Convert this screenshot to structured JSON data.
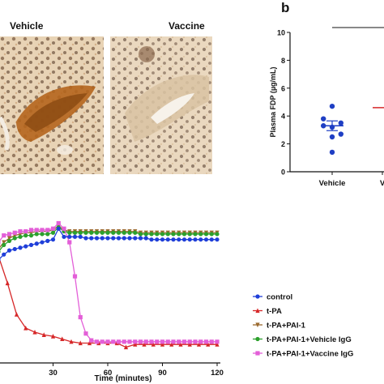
{
  "panels": {
    "histology": {
      "left_label": "Vehicle",
      "right_label": "Vaccine"
    },
    "b_label": "b"
  },
  "chart_data": [
    {
      "type": "scatter",
      "panel": "b",
      "title": "",
      "ylabel": "Plasma FDP (µg/mL)",
      "xlabel": "",
      "ylim": [
        0,
        10
      ],
      "yticks": [
        0,
        2,
        4,
        6,
        8,
        10
      ],
      "categories": [
        "Vehicle",
        "V"
      ],
      "significance": "*",
      "series": [
        {
          "category": "Vehicle",
          "color": "#1f3fc4",
          "points": [
            4.7,
            3.8,
            3.5,
            3.3,
            3.2,
            2.7,
            2.5,
            1.4
          ],
          "mean": 3.3,
          "sem_low": 2.95,
          "sem_high": 3.65
        }
      ],
      "partial_series_color": "#d62728",
      "partial_mean": 4.6
    },
    {
      "type": "line",
      "panel": "bottom",
      "title": "",
      "xlabel": "Time (minutes)",
      "ylabel": "",
      "xlim": [
        0,
        120
      ],
      "xticks": [
        30,
        60,
        90,
        120
      ],
      "ylim": [
        0,
        1.1
      ],
      "legend_position": "right",
      "series": [
        {
          "name": "control",
          "color": "#1f3fd9",
          "marker": "circle",
          "x": [
            0,
            3,
            6,
            9,
            12,
            15,
            18,
            21,
            24,
            27,
            30,
            33,
            36,
            39,
            42,
            45,
            48,
            51,
            54,
            57,
            60,
            63,
            66,
            69,
            72,
            75,
            78,
            81,
            84,
            87,
            90,
            93,
            96,
            99,
            102,
            105,
            108,
            111,
            114,
            117,
            120
          ],
          "y": [
            0.72,
            0.76,
            0.79,
            0.8,
            0.81,
            0.82,
            0.83,
            0.84,
            0.85,
            0.86,
            0.87,
            0.95,
            0.89,
            0.89,
            0.89,
            0.89,
            0.88,
            0.88,
            0.88,
            0.88,
            0.88,
            0.88,
            0.88,
            0.88,
            0.88,
            0.88,
            0.88,
            0.88,
            0.87,
            0.87,
            0.87,
            0.87,
            0.87,
            0.87,
            0.87,
            0.87,
            0.87,
            0.87,
            0.87,
            0.87,
            0.87
          ]
        },
        {
          "name": "t-PA",
          "color": "#d62728",
          "marker": "triangle",
          "x": [
            0,
            5,
            10,
            15,
            20,
            25,
            30,
            35,
            40,
            45,
            50,
            55,
            60,
            65,
            70,
            75,
            80,
            85,
            90,
            95,
            100,
            105,
            110,
            115,
            120
          ],
          "y": [
            0.75,
            0.55,
            0.32,
            0.22,
            0.19,
            0.17,
            0.16,
            0.14,
            0.12,
            0.11,
            0.11,
            0.11,
            0.11,
            0.11,
            0.08,
            0.1,
            0.1,
            0.1,
            0.1,
            0.1,
            0.1,
            0.1,
            0.1,
            0.1,
            0.1
          ]
        },
        {
          "name": "t-PA+PAI-1",
          "color": "#9b6a2f",
          "marker": "triangle-down",
          "x": [
            0,
            3,
            6,
            9,
            12,
            15,
            18,
            21,
            24,
            27,
            30,
            33,
            36,
            39,
            42,
            45,
            48,
            51,
            54,
            57,
            60,
            63,
            66,
            69,
            72,
            75,
            78,
            81,
            84,
            87,
            90,
            93,
            96,
            99,
            102,
            105,
            108,
            111,
            114,
            117,
            120
          ],
          "y": [
            0.8,
            0.85,
            0.88,
            0.9,
            0.91,
            0.92,
            0.92,
            0.93,
            0.93,
            0.93,
            0.94,
            0.97,
            0.94,
            0.93,
            0.93,
            0.93,
            0.93,
            0.93,
            0.93,
            0.93,
            0.93,
            0.93,
            0.93,
            0.93,
            0.93,
            0.93,
            0.92,
            0.92,
            0.92,
            0.92,
            0.92,
            0.92,
            0.92,
            0.92,
            0.92,
            0.92,
            0.92,
            0.92,
            0.92,
            0.92,
            0.92
          ]
        },
        {
          "name": "t-PA+PAI-1+Vehicle IgG",
          "color": "#2ca02c",
          "marker": "circle",
          "x": [
            0,
            3,
            6,
            9,
            12,
            15,
            18,
            21,
            24,
            27,
            30,
            33,
            36,
            39,
            42,
            45,
            48,
            51,
            54,
            57,
            60,
            63,
            66,
            69,
            72,
            75,
            78,
            81,
            84,
            87,
            90,
            93,
            96,
            99,
            102,
            105,
            108,
            111,
            114,
            117,
            120
          ],
          "y": [
            0.78,
            0.83,
            0.86,
            0.88,
            0.89,
            0.9,
            0.9,
            0.91,
            0.91,
            0.91,
            0.92,
            0.96,
            0.93,
            0.92,
            0.92,
            0.92,
            0.92,
            0.92,
            0.92,
            0.92,
            0.92,
            0.92,
            0.92,
            0.92,
            0.92,
            0.92,
            0.91,
            0.91,
            0.91,
            0.91,
            0.91,
            0.91,
            0.91,
            0.91,
            0.91,
            0.91,
            0.91,
            0.91,
            0.91,
            0.91,
            0.91
          ]
        },
        {
          "name": "t-PA+PAI-1+Vaccine IgG",
          "color": "#e35fd8",
          "marker": "square",
          "x": [
            0,
            3,
            6,
            9,
            12,
            15,
            18,
            21,
            24,
            27,
            30,
            33,
            36,
            39,
            42,
            45,
            48,
            51,
            54,
            57,
            60,
            63,
            66,
            69,
            72,
            75,
            78,
            81,
            84,
            87,
            90,
            93,
            96,
            99,
            102,
            105,
            108,
            111,
            114,
            117,
            120
          ],
          "y": [
            0.85,
            0.9,
            0.91,
            0.92,
            0.93,
            0.93,
            0.94,
            0.94,
            0.94,
            0.94,
            0.95,
            0.99,
            0.95,
            0.85,
            0.6,
            0.3,
            0.18,
            0.13,
            0.12,
            0.12,
            0.12,
            0.12,
            0.12,
            0.12,
            0.12,
            0.12,
            0.12,
            0.12,
            0.12,
            0.12,
            0.12,
            0.12,
            0.12,
            0.12,
            0.12,
            0.12,
            0.12,
            0.12,
            0.12,
            0.12,
            0.12
          ]
        }
      ]
    }
  ]
}
